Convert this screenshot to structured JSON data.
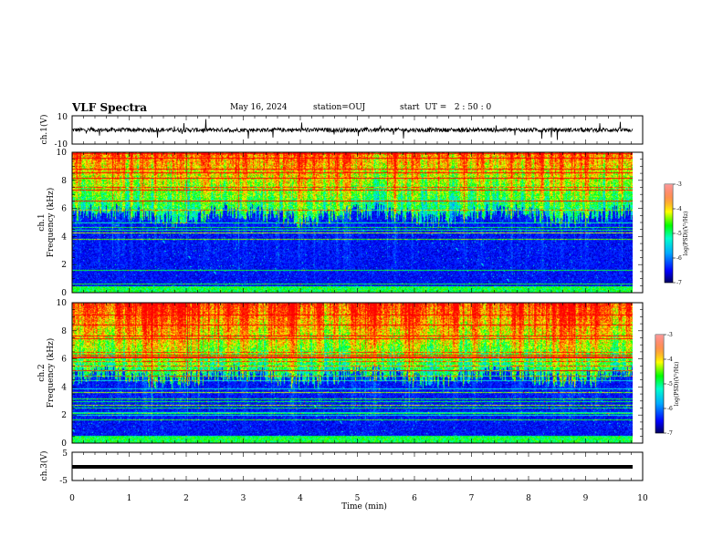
{
  "header": {
    "title": "VLF Spectra",
    "date": "May 16, 2024",
    "station": "station=OUJ",
    "start": "start  UT =   2 : 50 : 0"
  },
  "chart_data": [
    {
      "type": "line",
      "name": "ch1-waveform",
      "ylabel": "ch.1(V)",
      "ylim": [
        -10,
        10
      ],
      "yticks": [
        "10",
        "-10"
      ],
      "xlim": [
        0,
        10
      ],
      "description_values": {
        "baseline": 0,
        "noise_amplitude": 1.5
      }
    },
    {
      "type": "heatmap",
      "name": "ch1-spectrogram",
      "ylabel": "ch.1\nFrequency (kHz)",
      "ylabel_lines": [
        "ch.1",
        "Frequency (kHz)"
      ],
      "ylim": [
        0,
        10
      ],
      "yticks": [
        "0",
        "2",
        "4",
        "6",
        "8",
        "10"
      ],
      "xlim": [
        0,
        9.83
      ],
      "colorbar": {
        "label": "log(PSD)(V²/Hz)",
        "range": [
          -7,
          -3
        ],
        "ticks": [
          "-3",
          "-4",
          "-5",
          "-6",
          "-7"
        ]
      }
    },
    {
      "type": "heatmap",
      "name": "ch2-spectrogram",
      "ylabel_lines": [
        "ch.2",
        "Frequency (kHz)"
      ],
      "ylim": [
        0,
        10
      ],
      "yticks": [
        "0",
        "2",
        "4",
        "6",
        "8",
        "10"
      ],
      "xlim": [
        0,
        9.83
      ],
      "colorbar": {
        "label": "log(PSD)(V²/Hz)",
        "range": [
          -7,
          -3
        ],
        "ticks": [
          "-3",
          "-4",
          "-5",
          "-6",
          "-7"
        ]
      }
    },
    {
      "type": "line",
      "name": "ch3-waveform",
      "ylabel": "ch.3(V)",
      "ylim": [
        -5,
        5
      ],
      "yticks": [
        "5",
        "-5"
      ],
      "xlim": [
        0,
        10
      ],
      "description_values": {
        "baseline": -1.5
      }
    }
  ],
  "xaxis": {
    "label": "Time (min)",
    "ticks": [
      "0",
      "1",
      "2",
      "3",
      "4",
      "5",
      "6",
      "7",
      "8",
      "9",
      "10"
    ],
    "range": [
      0,
      10
    ]
  }
}
